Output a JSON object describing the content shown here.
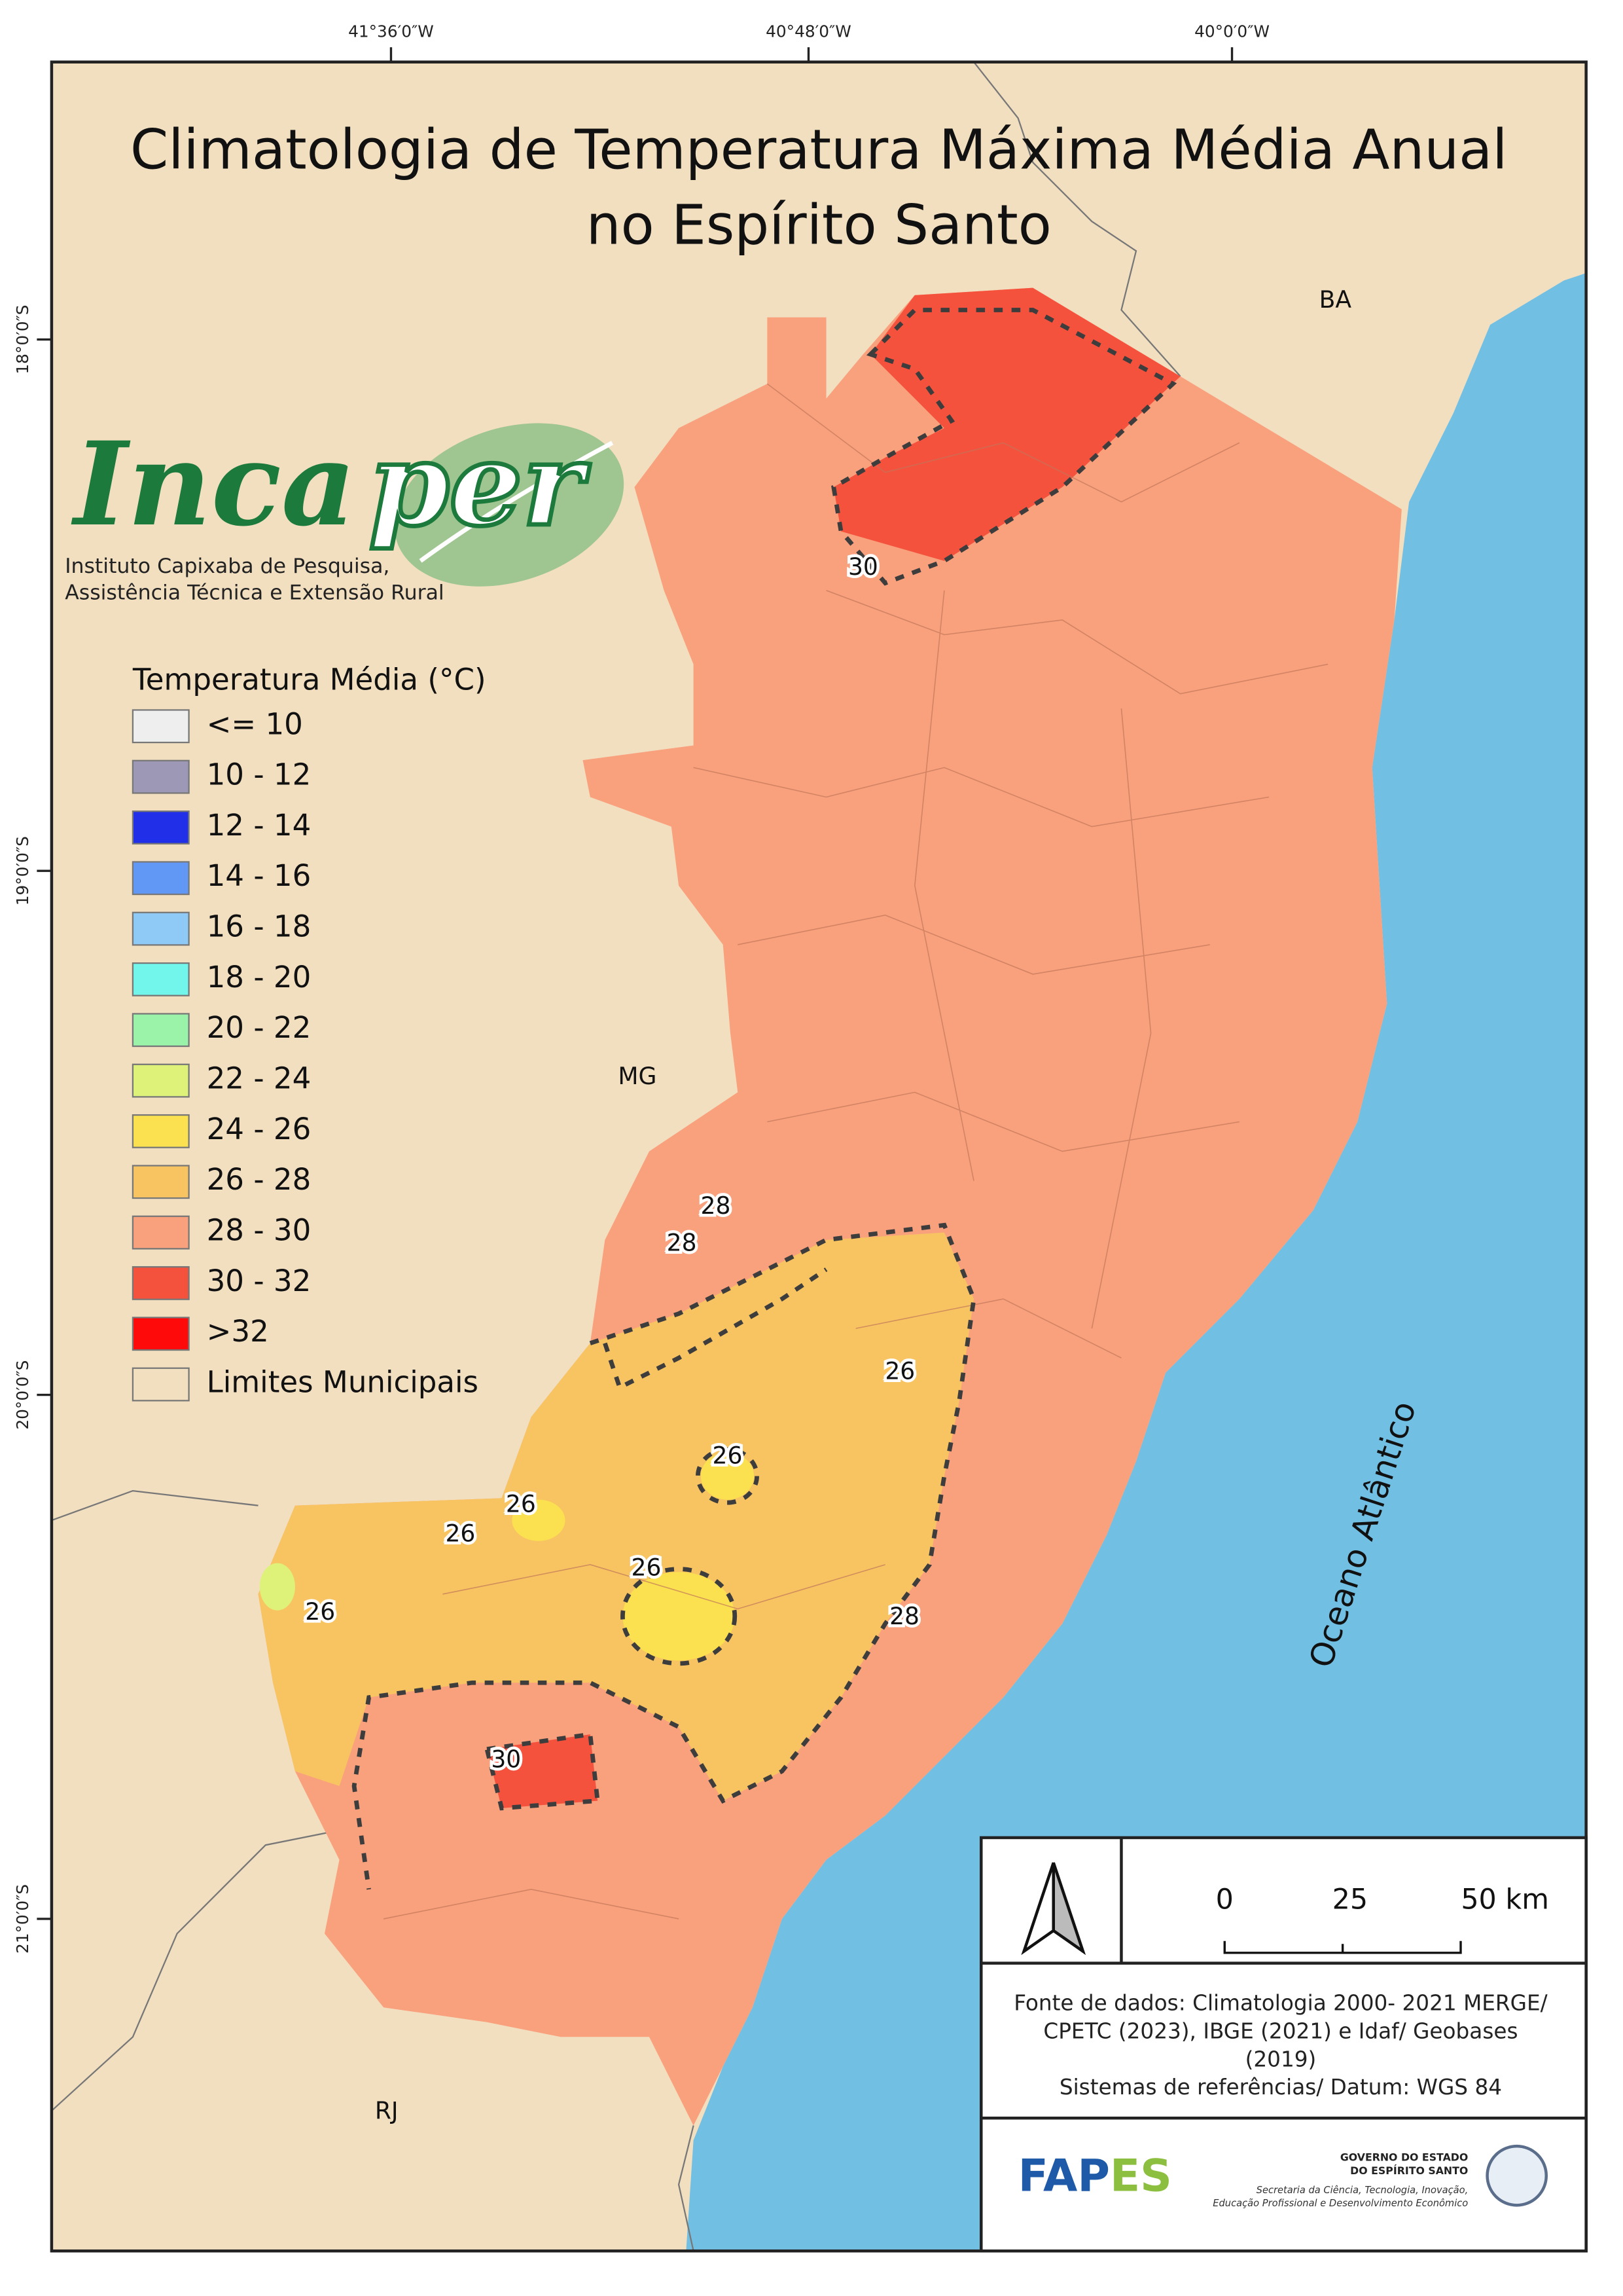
{
  "title": [
    "Climatologia de Temperatura Máxima Média Anual",
    "no Espírito Santo"
  ],
  "coordinates": {
    "top": [
      "41°36′0″W",
      "40°48′0″W",
      "40°0′0″W"
    ],
    "left": [
      "18°0′0″S",
      "19°0′0″S",
      "20°0′0″S",
      "21°0′0″S"
    ]
  },
  "logo": {
    "name": [
      "Inca",
      "per"
    ],
    "subtitle": [
      "Instituto Capixaba de Pesquisa,",
      "Assistência Técnica e Extensão Rural"
    ]
  },
  "legend": {
    "title": "Temperatura Média (°C)",
    "items": [
      {
        "label": "<= 10",
        "color": "#eeeeee"
      },
      {
        "label": "10 - 12",
        "color": "#9d98b5"
      },
      {
        "label": "12 - 14",
        "color": "#2130e8"
      },
      {
        "label": "14 - 16",
        "color": "#6197f5"
      },
      {
        "label": "16 - 18",
        "color": "#8fcaf7"
      },
      {
        "label": "18 - 20",
        "color": "#72f5ea"
      },
      {
        "label": "20 - 22",
        "color": "#9bf3a9"
      },
      {
        "label": "22 - 24",
        "color": "#def27a"
      },
      {
        "label": "24 - 26",
        "color": "#fbe050"
      },
      {
        "label": "26 - 28",
        "color": "#f8c462"
      },
      {
        "label": "28 - 30",
        "color": "#f9a07d"
      },
      {
        "label": "30 - 32",
        "color": "#f5523e"
      },
      {
        "label": ">32",
        "color": "#ff0a0a"
      },
      {
        "label": "Limites Municipais",
        "color": "#f2dfc0"
      }
    ]
  },
  "regions": [
    "BA",
    "MG",
    "RJ",
    "Oceano Atlântico"
  ],
  "isotherm_labels": [
    30,
    28,
    28,
    26,
    26,
    26,
    26,
    26,
    26,
    28,
    30
  ],
  "scale_bar": [
    "0",
    "25",
    "50 km"
  ],
  "source": [
    "Fonte de dados: Climatologia 2000- 2021 MERGE/",
    "CPETC (2023), IBGE (2021) e Idaf/ Geobases",
    "(2019)",
    "Sistemas de referências/ Datum: WGS 84"
  ],
  "footer_logos": {
    "fapes": [
      "FAP",
      "ES"
    ],
    "government": [
      "GOVERNO DO ESTADO",
      "DO ESPÍRITO SANTO"
    ],
    "secretariat": [
      "Secretaria da Ciência, Tecnologia, Inovação,",
      "Educação Profissional e Desenvolvimento Econômico"
    ]
  }
}
